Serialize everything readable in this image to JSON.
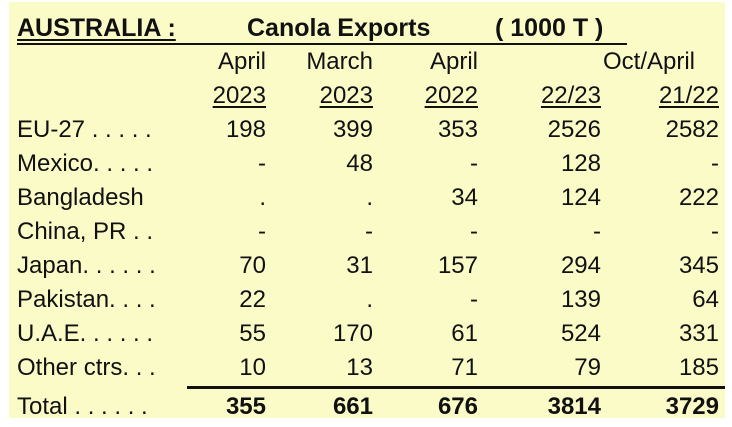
{
  "title": {
    "country": "AUSTRALIA :",
    "product": "Canola  Exports",
    "unit": "( 1000 T )"
  },
  "columns": [
    {
      "top": "April",
      "bottom": "2023"
    },
    {
      "top": "March",
      "bottom": "2023"
    },
    {
      "top": "April",
      "bottom": "2022"
    },
    {
      "top": "Oct/April",
      "bottom": "22/23"
    },
    {
      "top": "",
      "bottom": "21/22"
    }
  ],
  "rows": [
    {
      "label": "EU-27 . . . . .",
      "values": [
        "198",
        "399",
        "353",
        "2526",
        "2582"
      ]
    },
    {
      "label": "Mexico. . . . .",
      "values": [
        "-",
        "48",
        "-",
        "128",
        "-"
      ]
    },
    {
      "label": "Bangladesh",
      "values": [
        ".",
        ".",
        "34",
        "124",
        "222"
      ]
    },
    {
      "label": "China, PR . .",
      "values": [
        "-",
        "-",
        "-",
        "-",
        "-"
      ]
    },
    {
      "label": "Japan. . . . . .",
      "values": [
        "70",
        "31",
        "157",
        "294",
        "345"
      ]
    },
    {
      "label": "Pakistan. . . .",
      "values": [
        "22",
        ".",
        "-",
        "139",
        "64"
      ]
    },
    {
      "label": "U.A.E. . . . . .",
      "values": [
        "55",
        "170",
        "61",
        "524",
        "331"
      ]
    },
    {
      "label": "Other ctrs. . .",
      "values": [
        "10",
        "13",
        "71",
        "79",
        "185"
      ]
    }
  ],
  "total": {
    "label": "Total . . . . . .",
    "values": [
      "355",
      "661",
      "676",
      "3814",
      "3729"
    ]
  }
}
